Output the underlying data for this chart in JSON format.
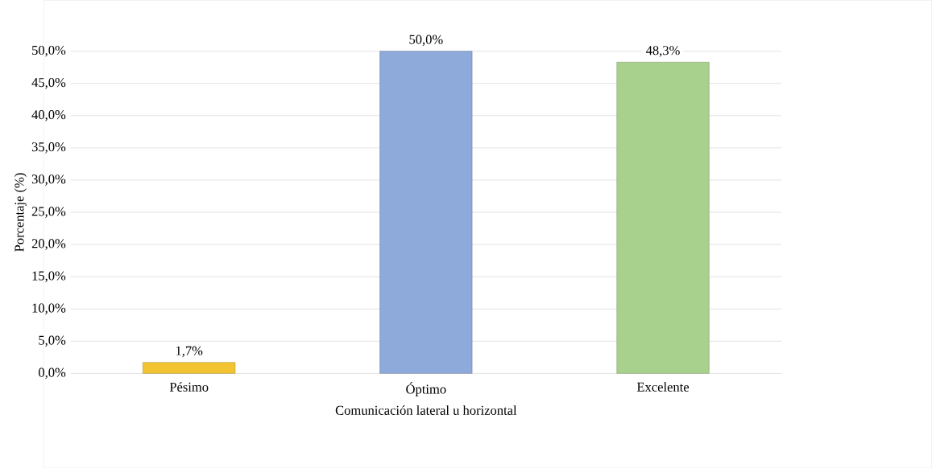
{
  "chart_data": {
    "type": "bar",
    "xlabel": "Comunicación lateral u horizontal",
    "ylabel": "Porcentaje (%)",
    "categories": [
      "Pésimo",
      "Óptimo",
      "Excelente"
    ],
    "values": [
      1.7,
      50.0,
      48.3
    ],
    "colors": [
      "#f2c431",
      "#8eaadb",
      "#a9d18e"
    ],
    "value_labels": [
      "1,7%",
      "50,0%",
      "48,3%"
    ],
    "ylim": [
      0,
      50
    ],
    "yticks": [
      {
        "value": 0,
        "label": "0,0%"
      },
      {
        "value": 5,
        "label": "5,0%"
      },
      {
        "value": 10,
        "label": "10,0%"
      },
      {
        "value": 15,
        "label": "15,0%"
      },
      {
        "value": 20,
        "label": "20,0%"
      },
      {
        "value": 25,
        "label": "25,0%"
      },
      {
        "value": 30,
        "label": "30,0%"
      },
      {
        "value": 35,
        "label": "35,0%"
      },
      {
        "value": 40,
        "label": "40,0%"
      },
      {
        "value": 45,
        "label": "45,0%"
      },
      {
        "value": 50,
        "label": "50,0%"
      }
    ],
    "grid": "y"
  }
}
